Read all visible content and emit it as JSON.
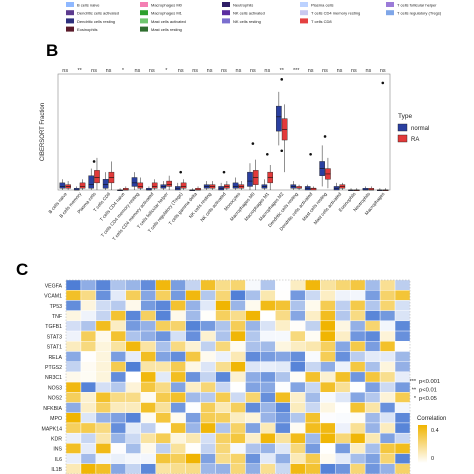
{
  "panels": [
    {
      "label": "B"
    },
    {
      "label": "C"
    }
  ],
  "top_legend": {
    "items": [
      {
        "label": "B cells naive",
        "color": "#8fb8ff"
      },
      {
        "label": "Dendritic cells activated",
        "color": "#5c3b8f"
      },
      {
        "label": "Dendritic cells resting",
        "color": "#2d2f7d"
      },
      {
        "label": "Eosinophils",
        "color": "#5a1a2a"
      },
      {
        "label": "Macrophages M0",
        "color": "#f47fb3"
      },
      {
        "label": "Macrophages M1",
        "color": "#2ca02c"
      },
      {
        "label": "Mast cells activated",
        "color": "#6ec66e"
      },
      {
        "label": "Mast cells resting",
        "color": "#2f6e2f"
      },
      {
        "label": "Neutrophils",
        "color": "#2e1d66"
      },
      {
        "label": "NK cells activated",
        "color": "#5a2ca0"
      },
      {
        "label": "NK cells resting",
        "color": "#7b6fcf"
      },
      {
        "label": "Plasma cells",
        "color": "#bcd2ff"
      },
      {
        "label": "T cells CD4 memory resting",
        "color": "#c9c9f0"
      },
      {
        "label": "T cells CD8",
        "color": "#e44040"
      },
      {
        "label": "T cells follicular helper",
        "color": "#9b7bd8"
      },
      {
        "label": "T cells regulatory (Tregs)",
        "color": "#7fa6e8"
      }
    ]
  },
  "chart_data": [
    {
      "type": "box",
      "ylabel": "CIBERSORT Fraction",
      "ylim": [
        0,
        0.65
      ],
      "legend": {
        "title": "Type",
        "placement": "right",
        "items": [
          {
            "name": "normal",
            "color": "#2a3fa0"
          },
          {
            "name": "RA",
            "color": "#e23a3a"
          }
        ]
      },
      "significance_marks": [
        "ns",
        "**",
        "ns",
        "ns",
        "*",
        "ns",
        "ns",
        "*",
        "ns",
        "ns",
        "ns",
        "ns",
        "ns",
        "ns",
        "ns",
        "**",
        "***",
        "ns",
        "ns",
        "ns",
        "ns",
        "ns",
        "ns"
      ],
      "categories": [
        "B cells naive",
        "B cells memory",
        "Plasma cells",
        "T cells CD8",
        "T cells CD4 naive",
        "T cells CD4 memory resting",
        "T cells CD4 memory activated",
        "T cells follicular helper",
        "T cells regulatory (Tregs)",
        "T cells gamma delta",
        "NK cells resting",
        "NK cells activated",
        "Monocytes",
        "Macrophages M0",
        "Macrophages M1",
        "Macrophages M2",
        "Dendritic cells resting",
        "Dendritic cells activated",
        "Mast cells resting",
        "Mast cells activated",
        "Eosinophils",
        "Neutrophils",
        "Macrophages"
      ],
      "series": [
        {
          "name": "normal",
          "boxes": [
            [
              0,
              0.01,
              0.02,
              0.04,
              0.06
            ],
            [
              0,
              0,
              0,
              0.01,
              0.02
            ],
            [
              0,
              0.01,
              0.03,
              0.08,
              0.12
            ],
            [
              0,
              0.01,
              0.03,
              0.06,
              0.1
            ],
            [
              0,
              0,
              0,
              0,
              0.01
            ],
            [
              0,
              0.02,
              0.04,
              0.07,
              0.1
            ],
            [
              0,
              0,
              0,
              0.01,
              0.02
            ],
            [
              0,
              0.01,
              0.02,
              0.03,
              0.05
            ],
            [
              0,
              0,
              0.01,
              0.02,
              0.04
            ],
            [
              0,
              0,
              0,
              0,
              0.01
            ],
            [
              0,
              0.01,
              0.02,
              0.03,
              0.05
            ],
            [
              0,
              0,
              0.01,
              0.02,
              0.04
            ],
            [
              0,
              0.01,
              0.02,
              0.04,
              0.07
            ],
            [
              0,
              0.02,
              0.05,
              0.1,
              0.15
            ],
            [
              0,
              0.01,
              0.02,
              0.03,
              0.06
            ],
            [
              0.25,
              0.33,
              0.41,
              0.47,
              0.55
            ],
            [
              0,
              0.01,
              0.02,
              0.03,
              0.05
            ],
            [
              0,
              0,
              0.01,
              0.02,
              0.03
            ],
            [
              0.02,
              0.08,
              0.12,
              0.16,
              0.25
            ],
            [
              0,
              0,
              0.01,
              0.02,
              0.04
            ],
            [
              0,
              0,
              0,
              0,
              0.01
            ],
            [
              0,
              0,
              0,
              0.01,
              0.02
            ],
            [
              0,
              0,
              0,
              0,
              0.01
            ]
          ]
        },
        {
          "name": "RA",
          "boxes": [
            [
              0,
              0.01,
              0.02,
              0.03,
              0.05
            ],
            [
              0,
              0.01,
              0.02,
              0.04,
              0.06
            ],
            [
              0,
              0.04,
              0.07,
              0.11,
              0.18
            ],
            [
              0,
              0.04,
              0.07,
              0.1,
              0.16
            ],
            [
              0,
              0,
              0,
              0.01,
              0.02
            ],
            [
              0,
              0.01,
              0.02,
              0.04,
              0.07
            ],
            [
              0,
              0.01,
              0.02,
              0.04,
              0.06
            ],
            [
              0,
              0.02,
              0.03,
              0.05,
              0.08
            ],
            [
              0,
              0.01,
              0.02,
              0.04,
              0.06
            ],
            [
              0,
              0,
              0,
              0.01,
              0.02
            ],
            [
              0,
              0.01,
              0.02,
              0.03,
              0.05
            ],
            [
              0,
              0.01,
              0.02,
              0.03,
              0.05
            ],
            [
              0,
              0.01,
              0.02,
              0.03,
              0.05
            ],
            [
              0,
              0.03,
              0.07,
              0.11,
              0.17
            ],
            [
              0,
              0.04,
              0.07,
              0.1,
              0.14
            ],
            [
              0.1,
              0.28,
              0.34,
              0.4,
              0.48
            ],
            [
              0,
              0.01,
              0.01,
              0.02,
              0.03
            ],
            [
              0,
              0,
              0.01,
              0.01,
              0.02
            ],
            [
              0.01,
              0.06,
              0.09,
              0.12,
              0.18
            ],
            [
              0,
              0.01,
              0.02,
              0.03,
              0.04
            ],
            [
              0,
              0,
              0,
              0,
              0.01
            ],
            [
              0,
              0,
              0,
              0.01,
              0.02
            ],
            [
              0,
              0,
              0,
              0,
              0.01
            ]
          ]
        }
      ]
    },
    {
      "type": "heatmap",
      "rows": [
        "VEGFA",
        "VCAM1",
        "TP53",
        "TNF",
        "TGFB1",
        "STAT3",
        "STAT1",
        "RELA",
        "PTGS2",
        "NR3C1",
        "NOS3",
        "NOS2",
        "NFKBIA",
        "MPO",
        "MAPK14",
        "KDR",
        "INS",
        "IL6",
        "IL1B"
      ],
      "columns": 23,
      "value_range": [
        -0.4,
        0.4
      ],
      "colorbar": {
        "title": "Correlation",
        "ticks": [
          "0.4",
          "0"
        ],
        "colors": [
          "#4f7ed6",
          "#ffffff",
          "#f0b400"
        ]
      },
      "pvalue_legend": [
        {
          "symbol": "***",
          "text": "p<0.001"
        },
        {
          "symbol": "**",
          "text": "p<0.01"
        },
        {
          "symbol": "*",
          "text": "p<0.05"
        }
      ]
    }
  ]
}
